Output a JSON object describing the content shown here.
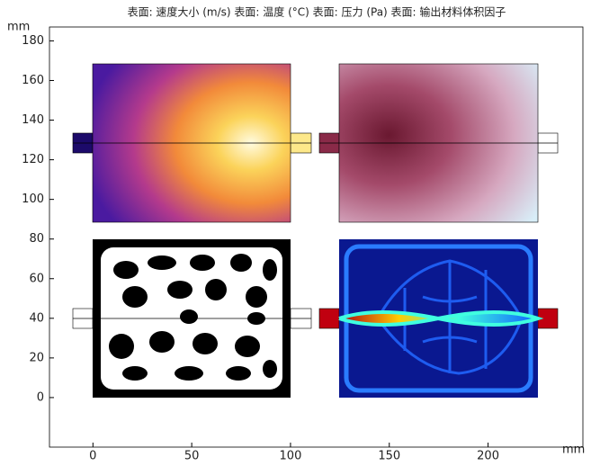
{
  "chart_data": {
    "type": "surface",
    "title": "表面: 速度大小 (m/s) 表面: 温度 (°C) 表面: 压力 (Pa) 表面: 输出材料体积因子",
    "x_label": "mm",
    "y_label": "mm",
    "xlim": [
      -22,
      248
    ],
    "xticks": [
      0,
      50,
      100,
      150,
      200
    ],
    "ylim": [
      -25,
      187
    ],
    "yticks": [
      0,
      20,
      40,
      60,
      80,
      100,
      120,
      140,
      160,
      180
    ],
    "grid": false
  }
}
